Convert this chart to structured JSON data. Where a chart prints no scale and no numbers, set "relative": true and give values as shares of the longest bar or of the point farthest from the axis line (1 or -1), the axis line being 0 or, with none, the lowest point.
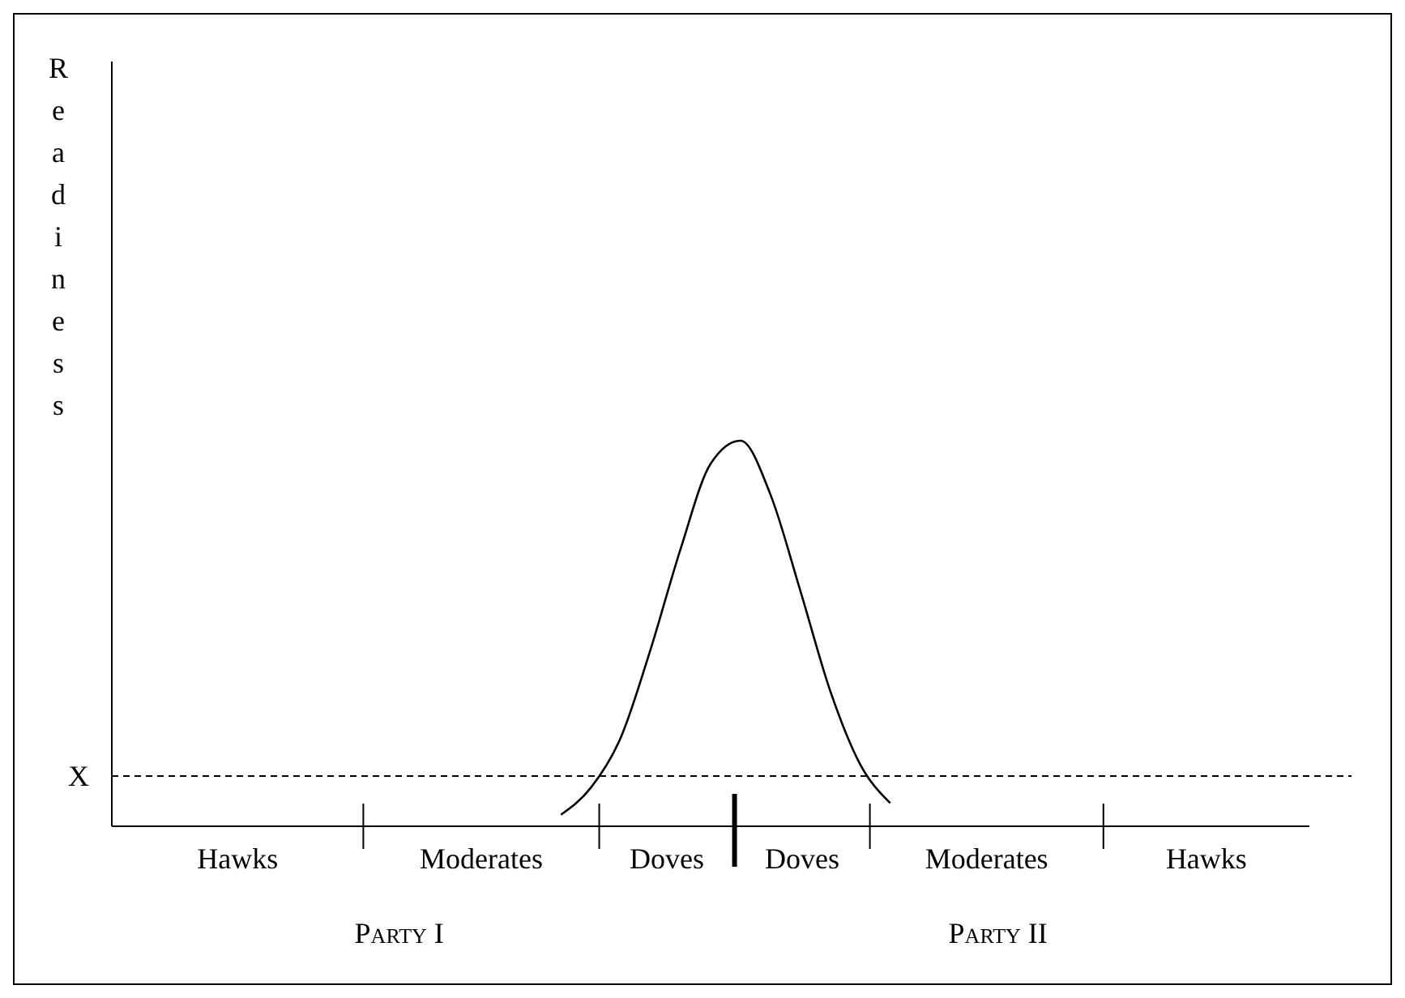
{
  "chart_data": {
    "type": "line",
    "relative": true,
    "ylabel": "Readiness",
    "categories": [
      null,
      null,
      null,
      null,
      null,
      null,
      null,
      null,
      null,
      null,
      null,
      null,
      null,
      null,
      null,
      null,
      null,
      null,
      null,
      null,
      null,
      null,
      null,
      null,
      null,
      null,
      null,
      null,
      null,
      null,
      null,
      null,
      null,
      null,
      null,
      null,
      null,
      null,
      null,
      null,
      null
    ],
    "series": [
      {
        "color": "#000000",
        "values": [
          null,
          null,
          null,
          null,
          null,
          null,
          null,
          null,
          null,
          null,
          null,
          null,
          null,
          null,
          null,
          0.03,
          0.1,
          0.23,
          0.46,
          0.72,
          0.94,
          1,
          0.86,
          0.61,
          0.35,
          0.16,
          0.06,
          null,
          null,
          null,
          null,
          null,
          null,
          null,
          null,
          null,
          null,
          null,
          null,
          null,
          null
        ]
      }
    ],
    "ref_lines": [
      {
        "axis": "y",
        "value": 0.13,
        "label": "X",
        "color": "#000000",
        "line_style": "dashed"
      }
    ],
    "annotations": [
      "Hawks",
      "Moderates",
      "Doves",
      "Doves",
      "Moderates",
      "Hawks",
      "Party I",
      "Party II"
    ],
    "line_style": "solid"
  }
}
